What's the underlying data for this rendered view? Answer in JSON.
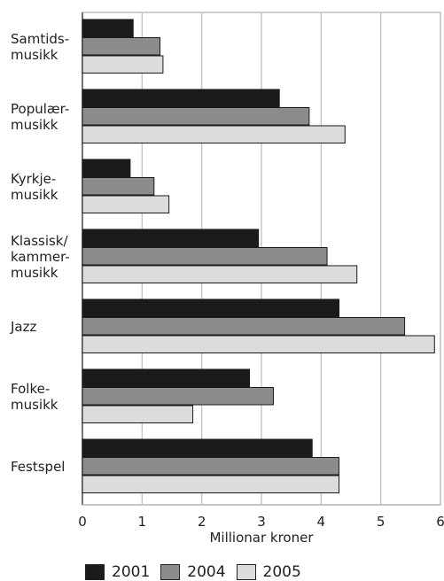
{
  "chart_data": {
    "type": "bar",
    "orientation": "horizontal",
    "categories": [
      "Samtids-\nmusikk",
      "Populær-\nmusikk",
      "Kyrkje-\nmusikk",
      "Klassisk/\nkammer-\nmusikk",
      "Jazz",
      "Folke-\nmusikk",
      "Festspel"
    ],
    "series": [
      {
        "name": "2001",
        "color": "#1a1a1a",
        "values": [
          0.85,
          3.3,
          0.8,
          2.95,
          4.3,
          2.8,
          3.85
        ]
      },
      {
        "name": "2004",
        "color": "#8c8c8c",
        "values": [
          1.3,
          3.8,
          1.2,
          4.1,
          5.4,
          3.2,
          4.3
        ]
      },
      {
        "name": "2005",
        "color": "#dcdcdc",
        "values": [
          1.35,
          4.4,
          1.45,
          4.6,
          5.9,
          1.85,
          4.3
        ]
      }
    ],
    "xlabel": "Millionar kroner",
    "ylabel": "",
    "xlim": [
      0,
      6
    ],
    "xticks": [
      "0",
      "1",
      "2",
      "3",
      "4",
      "5",
      "6"
    ],
    "grid": true,
    "legend_position": "bottom"
  }
}
